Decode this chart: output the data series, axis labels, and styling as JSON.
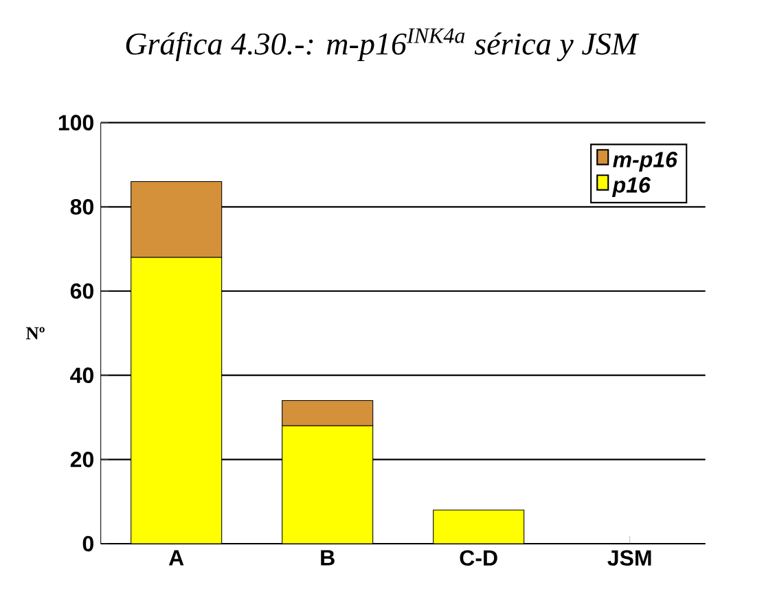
{
  "chart_data": {
    "type": "bar",
    "title": "Gráfica 4.30.-: m-p16$^{INK4a}$ sérica y  JSM",
    "ylabel": "Nº",
    "categories": [
      "A",
      "B",
      "C-D",
      "JSM"
    ],
    "series": [
      {
        "name": "p16",
        "color": "#ffff00",
        "values": [
          68,
          28,
          8,
          0
        ]
      },
      {
        "name": "m-p16",
        "color": "#d4913a",
        "values": [
          18,
          6,
          0,
          0
        ]
      }
    ],
    "stacked": true,
    "ylim": [
      0,
      100
    ],
    "yticks": [
      0,
      20,
      40,
      60,
      80,
      100
    ],
    "grid": "y",
    "legend": "top right"
  }
}
